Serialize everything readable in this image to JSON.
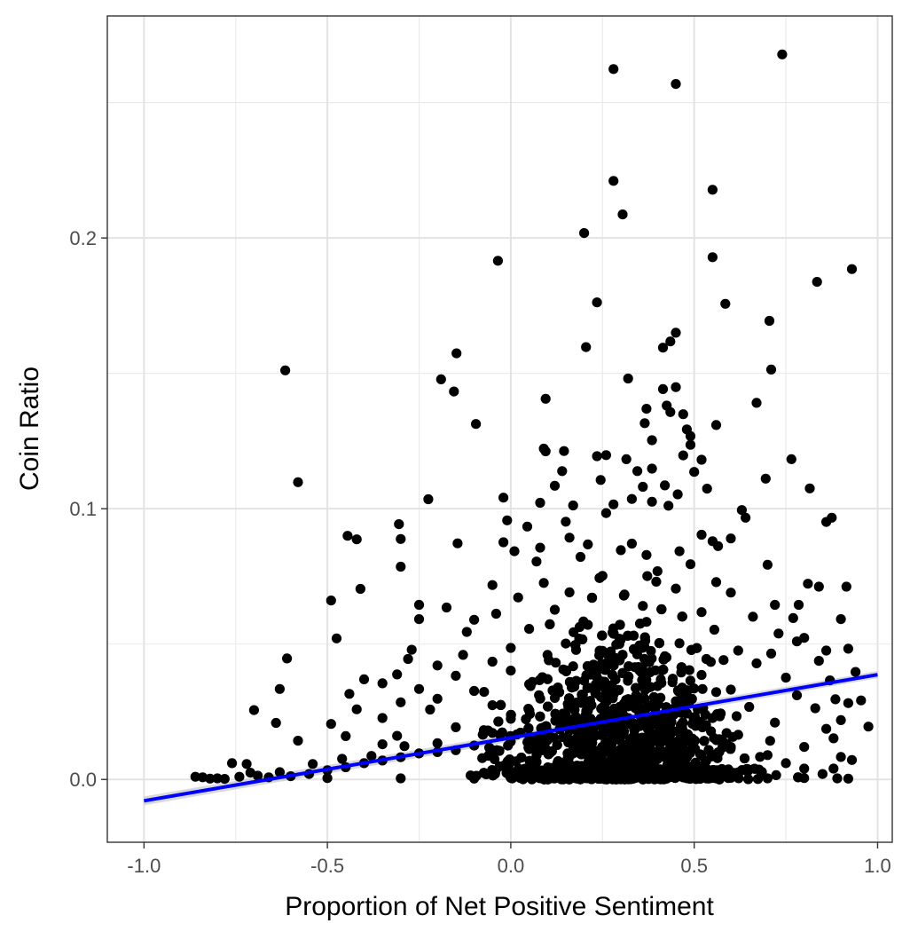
{
  "chart_data": {
    "type": "scatter",
    "title": "",
    "xlabel": "Proportion of Net Positive Sentiment",
    "ylabel": "Coin Ratio",
    "xlim": [
      -1.1,
      1.04
    ],
    "ylim": [
      -0.0232,
      0.282
    ],
    "x_ticks": [
      -1.0,
      -0.5,
      0.0,
      0.5,
      1.0
    ],
    "x_tick_labels": [
      "-1.0",
      "-0.5",
      "0.0",
      "0.5",
      "1.0"
    ],
    "y_ticks": [
      0.0,
      0.1,
      0.2
    ],
    "y_tick_labels": [
      "0.0",
      "0.1",
      "0.2"
    ],
    "grid": true,
    "theme": "black-and-white",
    "point_color": "#000000",
    "fit_line": {
      "type": "linear",
      "color": "#0000ff",
      "band_color": "#bfbfbf",
      "x": [
        -1.0,
        1.0
      ],
      "y": [
        -0.0079,
        0.0387
      ]
    },
    "points": [
      [
        0.74,
        0.2678
      ],
      [
        0.28,
        0.2624
      ],
      [
        0.45,
        0.2569
      ],
      [
        0.28,
        0.2211
      ],
      [
        0.55,
        0.2178
      ],
      [
        0.305,
        0.2087
      ],
      [
        0.2,
        0.2018
      ],
      [
        -0.035,
        0.1916
      ],
      [
        0.55,
        0.1929
      ],
      [
        0.93,
        0.1885
      ],
      [
        0.835,
        0.1838
      ],
      [
        0.235,
        0.1762
      ],
      [
        0.585,
        0.1757
      ],
      [
        0.705,
        0.1694
      ],
      [
        0.45,
        0.165
      ],
      [
        0.435,
        0.1618
      ],
      [
        0.205,
        0.1597
      ],
      [
        0.415,
        0.1595
      ],
      [
        -0.148,
        0.1574
      ],
      [
        0.71,
        0.1514
      ],
      [
        -0.615,
        0.1511
      ],
      [
        0.32,
        0.1481
      ],
      [
        -0.19,
        0.1478
      ],
      [
        -0.155,
        0.1433
      ],
      [
        0.45,
        0.1449
      ],
      [
        0.415,
        0.1442
      ],
      [
        0.095,
        0.1406
      ],
      [
        0.67,
        0.1391
      ],
      [
        0.425,
        0.1381
      ],
      [
        0.435,
        0.1357
      ],
      [
        0.37,
        0.1369
      ],
      [
        0.47,
        0.1349
      ],
      [
        0.365,
        0.1316
      ],
      [
        -0.095,
        0.1313
      ],
      [
        0.56,
        0.1309
      ],
      [
        0.48,
        0.1293
      ],
      [
        0.49,
        0.1268
      ],
      [
        0.385,
        0.1253
      ],
      [
        0.49,
        0.1236
      ],
      [
        0.09,
        0.1222
      ],
      [
        0.095,
        0.1212
      ],
      [
        0.145,
        0.1213
      ],
      [
        0.47,
        0.1197
      ],
      [
        0.52,
        0.1181
      ],
      [
        0.765,
        0.1183
      ],
      [
        0.235,
        0.1194
      ],
      [
        0.26,
        0.1198
      ],
      [
        0.315,
        0.1183
      ],
      [
        0.14,
        0.1139
      ],
      [
        0.345,
        0.1139
      ],
      [
        0.385,
        0.1148
      ],
      [
        0.5,
        0.1136
      ],
      [
        0.695,
        0.1111
      ],
      [
        -0.58,
        0.1098
      ],
      [
        0.12,
        0.1085
      ],
      [
        0.245,
        0.1106
      ],
      [
        0.36,
        0.1081
      ],
      [
        0.42,
        0.1086
      ],
      [
        0.455,
        0.1053
      ],
      [
        0.535,
        0.1074
      ],
      [
        0.815,
        0.1075
      ],
      [
        -0.225,
        0.1035
      ],
      [
        -0.02,
        0.1041
      ],
      [
        0.08,
        0.1022
      ],
      [
        0.17,
        0.1012
      ],
      [
        0.28,
        0.1016
      ],
      [
        0.33,
        0.1036
      ],
      [
        0.385,
        0.1026
      ],
      [
        0.43,
        0.1011
      ],
      [
        0.63,
        0.0995
      ],
      [
        -0.01,
        0.0957
      ],
      [
        0.045,
        0.0934
      ],
      [
        0.15,
        0.0952
      ],
      [
        0.26,
        0.0984
      ],
      [
        0.64,
        0.0967
      ],
      [
        0.875,
        0.0967
      ],
      [
        0.86,
        0.0951
      ],
      [
        -0.305,
        0.0943
      ],
      [
        -0.445,
        0.09
      ],
      [
        -0.42,
        0.0887
      ],
      [
        -0.3,
        0.0888
      ],
      [
        -0.145,
        0.0872
      ],
      [
        -0.02,
        0.0876
      ],
      [
        0.16,
        0.0893
      ],
      [
        0.33,
        0.0871
      ],
      [
        0.52,
        0.0904
      ],
      [
        0.6,
        0.089
      ],
      [
        0.55,
        0.088
      ],
      [
        0.01,
        0.0843
      ],
      [
        0.08,
        0.0856
      ],
      [
        0.21,
        0.0868
      ],
      [
        0.3,
        0.0847
      ],
      [
        0.46,
        0.0843
      ],
      [
        0.565,
        0.0862
      ],
      [
        -0.3,
        0.0786
      ],
      [
        0.07,
        0.0805
      ],
      [
        0.19,
        0.0822
      ],
      [
        0.37,
        0.0829
      ],
      [
        0.49,
        0.0795
      ],
      [
        0.7,
        0.0793
      ],
      [
        -0.41,
        0.0704
      ],
      [
        -0.05,
        0.0718
      ],
      [
        0.09,
        0.0726
      ],
      [
        0.25,
        0.0752
      ],
      [
        0.4,
        0.0769
      ],
      [
        0.56,
        0.0729
      ],
      [
        0.81,
        0.0723
      ],
      [
        0.84,
        0.0712
      ],
      [
        0.915,
        0.0712
      ],
      [
        -0.49,
        0.0661
      ],
      [
        -0.25,
        0.0645
      ],
      [
        -0.175,
        0.0635
      ],
      [
        0.02,
        0.0672
      ],
      [
        0.16,
        0.0691
      ],
      [
        0.31,
        0.0683
      ],
      [
        0.45,
        0.0705
      ],
      [
        0.6,
        0.069
      ],
      [
        0.72,
        0.0645
      ],
      [
        0.785,
        0.0645
      ],
      [
        -0.25,
        0.0592
      ],
      [
        -0.1,
        0.059
      ],
      [
        -0.04,
        0.0612
      ],
      [
        0.12,
        0.0627
      ],
      [
        0.36,
        0.0641
      ],
      [
        0.52,
        0.0618
      ],
      [
        0.66,
        0.0601
      ],
      [
        0.77,
        0.0596
      ],
      [
        0.9,
        0.0592
      ],
      [
        -0.475,
        0.0521
      ],
      [
        -0.27,
        0.0479
      ],
      [
        -0.12,
        0.0545
      ],
      [
        0.05,
        0.0556
      ],
      [
        0.21,
        0.0571
      ],
      [
        0.37,
        0.0582
      ],
      [
        0.555,
        0.0553
      ],
      [
        0.73,
        0.0539
      ],
      [
        0.8,
        0.0523
      ],
      [
        0.78,
        0.051
      ],
      [
        -0.28,
        0.0445
      ],
      [
        -0.13,
        0.046
      ],
      [
        0.0,
        0.0486
      ],
      [
        0.15,
        0.0502
      ],
      [
        0.3,
        0.0517
      ],
      [
        0.46,
        0.0503
      ],
      [
        0.62,
        0.0476
      ],
      [
        0.86,
        0.0476
      ],
      [
        0.92,
        0.0483
      ],
      [
        0.71,
        0.0465
      ],
      [
        -0.61,
        0.0447
      ],
      [
        -0.35,
        0.0355
      ],
      [
        -0.31,
        0.0388
      ],
      [
        -0.2,
        0.0421
      ],
      [
        -0.05,
        0.0435
      ],
      [
        0.1,
        0.046
      ],
      [
        0.25,
        0.0475
      ],
      [
        0.42,
        0.0455
      ],
      [
        0.58,
        0.0441
      ],
      [
        0.67,
        0.0429
      ],
      [
        0.84,
        0.0438
      ],
      [
        -0.63,
        0.0334
      ],
      [
        -0.4,
        0.037
      ],
      [
        -0.44,
        0.0316
      ],
      [
        -0.25,
        0.0334
      ],
      [
        -0.15,
        0.0383
      ],
      [
        0.0,
        0.0402
      ],
      [
        0.17,
        0.0418
      ],
      [
        0.35,
        0.0405
      ],
      [
        0.52,
        0.0386
      ],
      [
        0.75,
        0.0376
      ],
      [
        0.94,
        0.0397
      ],
      [
        0.87,
        0.0366
      ],
      [
        -0.7,
        0.0256
      ],
      [
        -0.3,
        0.0285
      ],
      [
        -0.42,
        0.0259
      ],
      [
        -0.2,
        0.0298
      ],
      [
        -0.1,
        0.0327
      ],
      [
        0.05,
        0.0352
      ],
      [
        0.2,
        0.0365
      ],
      [
        0.4,
        0.0345
      ],
      [
        0.6,
        0.0332
      ],
      [
        0.78,
        0.0311
      ],
      [
        0.885,
        0.0296
      ],
      [
        0.955,
        0.0292
      ],
      [
        0.92,
        0.0282
      ],
      [
        -0.64,
        0.0209
      ],
      [
        -0.49,
        0.0205
      ],
      [
        -0.35,
        0.0227
      ],
      [
        -0.22,
        0.0258
      ],
      [
        -0.05,
        0.0274
      ],
      [
        0.12,
        0.0301
      ],
      [
        0.27,
        0.031
      ],
      [
        0.45,
        0.0289
      ],
      [
        0.65,
        0.0268
      ],
      [
        0.83,
        0.0263
      ],
      [
        0.9,
        0.0219
      ],
      [
        0.975,
        0.0195
      ],
      [
        -0.58,
        0.0143
      ],
      [
        -0.45,
        0.016
      ],
      [
        -0.35,
        0.013
      ],
      [
        -0.31,
        0.0161
      ],
      [
        -0.15,
        0.0193
      ],
      [
        0.0,
        0.0224
      ],
      [
        0.15,
        0.0238
      ],
      [
        0.35,
        0.0249
      ],
      [
        0.55,
        0.0227
      ],
      [
        0.72,
        0.021
      ],
      [
        0.86,
        0.0187
      ],
      [
        0.88,
        0.0152
      ],
      [
        -0.76,
        0.006
      ],
      [
        -0.72,
        0.0057
      ],
      [
        -0.63,
        0.0027
      ],
      [
        -0.54,
        0.0057
      ],
      [
        -0.46,
        0.0076
      ],
      [
        -0.38,
        0.0087
      ],
      [
        -0.29,
        0.0123
      ],
      [
        -0.2,
        0.0134
      ],
      [
        -0.05,
        0.0172
      ],
      [
        0.1,
        0.0178
      ],
      [
        0.25,
        0.0192
      ],
      [
        0.42,
        0.0176
      ],
      [
        0.62,
        0.0165
      ],
      [
        0.8,
        0.012
      ],
      [
        0.9,
        0.0083
      ],
      [
        0.93,
        0.0072
      ],
      [
        -0.86,
        0.001
      ],
      [
        -0.84,
        0.0008
      ],
      [
        -0.82,
        0.0003
      ],
      [
        -0.8,
        0.0004
      ],
      [
        -0.78,
        0.0002
      ],
      [
        -0.74,
        0.001
      ],
      [
        -0.71,
        0.0025
      ],
      [
        -0.69,
        0.0014
      ],
      [
        -0.66,
        0.0008
      ],
      [
        -0.6,
        0.0012
      ],
      [
        -0.55,
        0.002
      ],
      [
        -0.5,
        0.0034
      ],
      [
        -0.45,
        0.0045
      ],
      [
        -0.4,
        0.006
      ],
      [
        -0.35,
        0.007
      ],
      [
        -0.3,
        0.0082
      ],
      [
        -0.25,
        0.0096
      ],
      [
        -0.2,
        0.0101
      ],
      [
        -0.15,
        0.0108
      ],
      [
        -0.1,
        0.0125
      ],
      [
        0.0,
        0.014
      ],
      [
        0.1,
        0.0145
      ],
      [
        0.2,
        0.0155
      ],
      [
        0.3,
        0.016
      ],
      [
        0.4,
        0.015
      ],
      [
        0.5,
        0.014
      ],
      [
        0.6,
        0.012
      ],
      [
        0.7,
        0.009
      ],
      [
        0.75,
        0.006
      ],
      [
        0.8,
        0.004
      ],
      [
        0.85,
        0.002
      ],
      [
        0.88,
        0.004
      ],
      [
        0.89,
        0.0004
      ],
      [
        0.92,
        0.0003
      ],
      [
        -0.5,
        0.0005
      ],
      [
        -0.3,
        0.0004
      ],
      [
        -0.1,
        0.0003
      ],
      [
        0.0,
        0.0006
      ],
      [
        0.1,
        0.0008
      ],
      [
        0.2,
        0.0005
      ],
      [
        0.3,
        0.0004
      ],
      [
        0.4,
        0.0007
      ],
      [
        0.5,
        0.0005
      ],
      [
        0.6,
        0.0006
      ],
      [
        0.7,
        0.0004
      ],
      [
        0.8,
        0.0005
      ]
    ]
  }
}
